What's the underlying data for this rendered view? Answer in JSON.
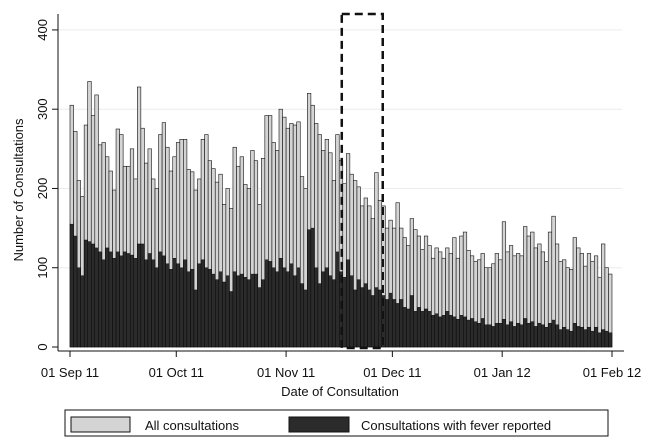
{
  "chart_data": {
    "type": "bar",
    "xlabel": "Date of Consultation",
    "ylabel": "Number of Consultations",
    "ylim": [
      0,
      410
    ],
    "yticks": [
      0,
      100,
      200,
      300,
      400
    ],
    "x_start": "01 Sep 11",
    "x_end": "01 Feb 12",
    "xtick_labels": [
      "01 Sep 11",
      "01 Oct 11",
      "01 Nov 11",
      "01 Dec 11",
      "01 Jan 12",
      "01 Feb 12"
    ],
    "grid": "horizontal",
    "legend": "bottom",
    "highlight": {
      "from": "17 Nov 11",
      "to": "28 Nov 11",
      "style": "dashed box"
    },
    "colors": {
      "all": "#d4d4d4",
      "fever": "#2b2b2b",
      "outline": "#111111"
    },
    "series": [
      {
        "name": "All consultations",
        "values": [
          305,
          272,
          210,
          190,
          280,
          335,
          292,
          318,
          255,
          258,
          240,
          222,
          198,
          275,
          268,
          228,
          228,
          250,
          212,
          328,
          276,
          232,
          250,
          212,
          200,
          268,
          283,
          252,
          222,
          240,
          258,
          262,
          262,
          224,
          221,
          198,
          212,
          262,
          268,
          235,
          225,
          208,
          218,
          180,
          200,
          175,
          252,
          228,
          240,
          205,
          200,
          248,
          235,
          180,
          238,
          292,
          292,
          258,
          248,
          300,
          290,
          276,
          282,
          280,
          284,
          215,
          200,
          320,
          305,
          282,
          268,
          248,
          262,
          245,
          210,
          268,
          235,
          206,
          244,
          218,
          210,
          202,
          178,
          188,
          178,
          162,
          220,
          185,
          178,
          150,
          160,
          150,
          182,
          150,
          138,
          128,
          162,
          148,
          140,
          123,
          140,
          128,
          112,
          125,
          120,
          112,
          125,
          118,
          138,
          112,
          140,
          145,
          122,
          115,
          108,
          110,
          118,
          100,
          100,
          105,
          118,
          110,
          158,
          120,
          128,
          115,
          118,
          115,
          152,
          140,
          145,
          125,
          130,
          120,
          108,
          145,
          165,
          130,
          108,
          110,
          100,
          98,
          138,
          125,
          118,
          102,
          118,
          108,
          115,
          88,
          130,
          100,
          92
        ]
      },
      {
        "name": "Consultations with fever reported",
        "values": [
          155,
          140,
          100,
          90,
          135,
          133,
          130,
          125,
          120,
          110,
          125,
          120,
          112,
          120,
          115,
          120,
          118,
          116,
          112,
          130,
          130,
          110,
          118,
          110,
          100,
          120,
          115,
          105,
          98,
          112,
          105,
          100,
          110,
          95,
          98,
          72,
          105,
          110,
          100,
          98,
          92,
          85,
          95,
          82,
          90,
          70,
          95,
          90,
          92,
          88,
          85,
          92,
          92,
          75,
          85,
          110,
          108,
          100,
          95,
          112,
          100,
          95,
          105,
          90,
          100,
          80,
          72,
          148,
          150,
          100,
          80,
          95,
          100,
          90,
          85,
          120,
          95,
          88,
          110,
          90,
          72,
          85,
          75,
          80,
          72,
          65,
          75,
          72,
          65,
          60,
          68,
          60,
          55,
          60,
          50,
          48,
          65,
          45,
          50,
          45,
          48,
          45,
          40,
          42,
          38,
          40,
          45,
          40,
          38,
          35,
          40,
          38,
          34,
          36,
          32,
          30,
          36,
          28,
          28,
          26,
          30,
          30,
          35,
          28,
          32,
          26,
          30,
          28,
          36,
          30,
          32,
          26,
          30,
          28,
          25,
          30,
          34,
          28,
          22,
          25,
          22,
          20,
          30,
          26,
          25,
          22,
          25,
          20,
          25,
          18,
          22,
          20,
          18
        ]
      }
    ]
  }
}
